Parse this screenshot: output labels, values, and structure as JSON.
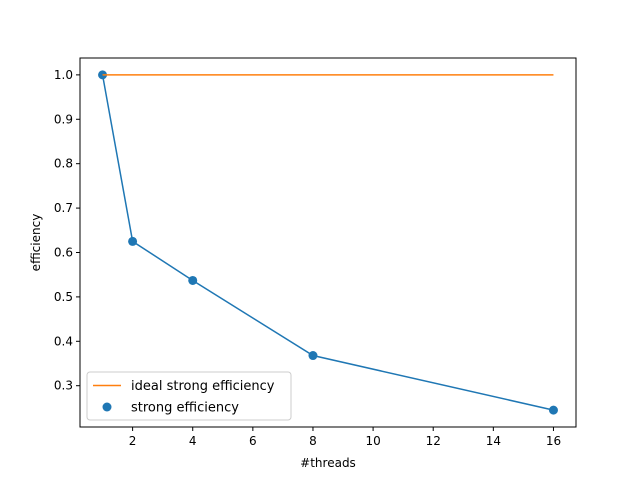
{
  "chart_data": {
    "type": "line",
    "title": "",
    "xlabel": "#threads",
    "ylabel": "efficiency",
    "xlim": [
      0.25,
      16.75
    ],
    "ylim": [
      0.207,
      1.038
    ],
    "xticks": [
      2,
      4,
      6,
      8,
      10,
      12,
      14,
      16
    ],
    "yticks": [
      0.3,
      0.4,
      0.5,
      0.6,
      0.7,
      0.8,
      0.9,
      1.0
    ],
    "xtick_labels": [
      "2",
      "4",
      "6",
      "8",
      "10",
      "12",
      "14",
      "16"
    ],
    "ytick_labels": [
      "0.3",
      "0.4",
      "0.5",
      "0.6",
      "0.7",
      "0.8",
      "0.9",
      "1.0"
    ],
    "grid": false,
    "legend_position": "lower-left",
    "series": [
      {
        "name": "ideal strong efficiency",
        "kind": "line",
        "color": "#ff7f0e",
        "x": [
          1,
          16
        ],
        "y": [
          1.0,
          1.0
        ]
      },
      {
        "name": "strong efficiency",
        "kind": "line+scatter",
        "color": "#1f77b4",
        "x": [
          1,
          2,
          4,
          8,
          16
        ],
        "y": [
          1.0,
          0.625,
          0.537,
          0.368,
          0.245
        ]
      }
    ]
  }
}
